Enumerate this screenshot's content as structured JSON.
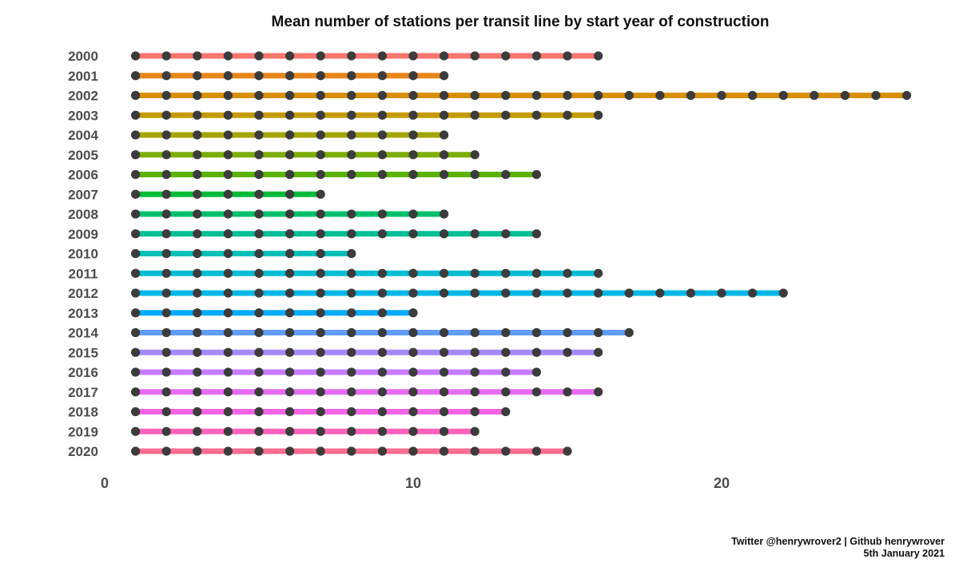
{
  "chart_data": {
    "type": "lollipop-dots",
    "title": "Mean number of stations per transit line by start year of construction",
    "xlabel": "",
    "ylabel": "",
    "xlim": [
      0,
      27
    ],
    "x_ticks": [
      0,
      10,
      20
    ],
    "categories": [
      "2000",
      "2001",
      "2002",
      "2003",
      "2004",
      "2005",
      "2006",
      "2007",
      "2008",
      "2009",
      "2010",
      "2011",
      "2012",
      "2013",
      "2014",
      "2015",
      "2016",
      "2017",
      "2018",
      "2019",
      "2020"
    ],
    "values": [
      16,
      11,
      26,
      16,
      11,
      12,
      14,
      7,
      11,
      14,
      8,
      16,
      22,
      10,
      17,
      16,
      14,
      16,
      13,
      12,
      15
    ],
    "colors": [
      "#F8766D",
      "#E7861B",
      "#D89000",
      "#C49A00",
      "#A3A500",
      "#7CAE00",
      "#5BB300",
      "#00BA38",
      "#00C06B",
      "#00BF96",
      "#00C0B8",
      "#00BDD4",
      "#00B8E7",
      "#00ABFD",
      "#619CFF",
      "#A58AFF",
      "#C77CFF",
      "#E76BF3",
      "#F564E3",
      "#FF62BC",
      "#FF6C91"
    ],
    "dot_color": "#3c3c3c",
    "grid": false,
    "legend": "none"
  },
  "caption": {
    "line1": "Twitter @henrywrover2 | Github henrywrover",
    "line2": "5th January 2021"
  }
}
